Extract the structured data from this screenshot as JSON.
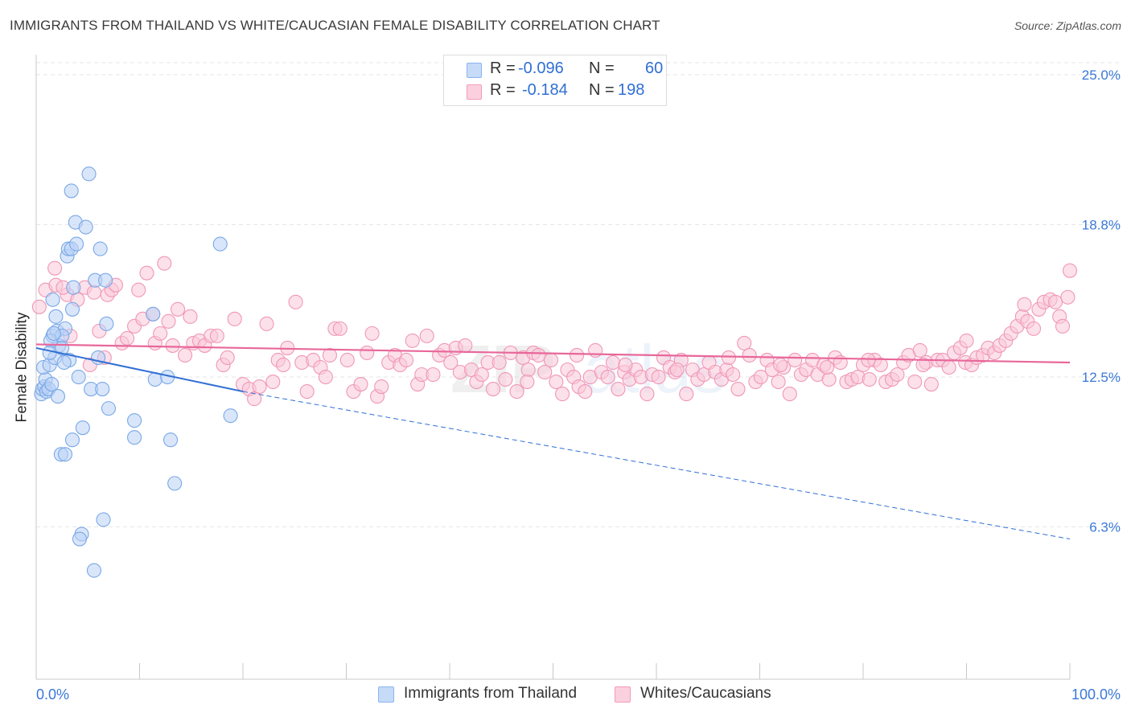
{
  "header": {
    "title": "IMMIGRANTS FROM THAILAND VS WHITE/CAUCASIAN FEMALE DISABILITY CORRELATION CHART",
    "source": "Source: ZipAtlas.com"
  },
  "legend": {
    "rows": [
      {
        "r_label": "R =",
        "r_value": "-0.096",
        "n_label": "N =",
        "n_value": "60",
        "color": "#8ab4f0",
        "fill": "#c6dbf7"
      },
      {
        "r_label": "R =",
        "r_value": "-0.184",
        "n_label": "N =",
        "n_value": "198",
        "color": "#f39ab8",
        "fill": "#fbd0de"
      }
    ]
  },
  "bottom_legend": [
    {
      "label": "Immigrants from Thailand"
    },
    {
      "label": "Whites/Caucasians"
    }
  ],
  "colors": {
    "blue_stroke": "#7aa8e6",
    "blue_fill": "#b9d2f5",
    "blue_line": "#2f6fd4",
    "pink_stroke": "#f097b6",
    "pink_fill": "#f9c8d8",
    "pink_line": "#e8679a",
    "axis_text": "#3b78d8",
    "grid": "#e6e6e6"
  },
  "chart_data": {
    "type": "scatter",
    "title": "IMMIGRANTS FROM THAILAND VS WHITE/CAUCASIAN FEMALE DISABILITY CORRELATION CHART",
    "xlabel": "",
    "ylabel": "Female Disability",
    "xlim": [
      0,
      100
    ],
    "ylim": [
      0,
      25.5
    ],
    "x_tick_labels": [
      "0.0%",
      "100.0%"
    ],
    "y_ticks": [
      6.3,
      12.5,
      18.8,
      25.0
    ],
    "y_tick_labels": [
      "6.3%",
      "12.5%",
      "18.8%",
      "25.0%"
    ],
    "grid": "horizontal dashed",
    "legend_position": "top-center",
    "watermark": "ZIPatlas",
    "series": [
      {
        "name": "Immigrants from Thailand",
        "R": -0.096,
        "N": 60,
        "trend": {
          "x0": 0,
          "y0": 13.7,
          "x1_solid": 20,
          "y1_solid": 11.9,
          "x1": 100,
          "y1": 5.8
        },
        "points": [
          [
            0.5,
            11.8
          ],
          [
            0.6,
            12.0
          ],
          [
            0.8,
            12.1
          ],
          [
            1.0,
            11.9
          ],
          [
            0.9,
            12.4
          ],
          [
            1.2,
            12.0
          ],
          [
            1.5,
            12.2
          ],
          [
            0.7,
            12.9
          ],
          [
            1.3,
            13.0
          ],
          [
            1.8,
            13.3
          ],
          [
            2.2,
            13.8
          ],
          [
            1.6,
            14.2
          ],
          [
            2.0,
            14.4
          ],
          [
            1.4,
            14.0
          ],
          [
            2.8,
            14.5
          ],
          [
            2.5,
            14.2
          ],
          [
            1.9,
            15.0
          ],
          [
            3.5,
            15.3
          ],
          [
            3.6,
            16.2
          ],
          [
            3.0,
            17.5
          ],
          [
            3.1,
            17.8
          ],
          [
            3.4,
            17.8
          ],
          [
            3.9,
            18.0
          ],
          [
            3.8,
            18.9
          ],
          [
            4.8,
            18.7
          ],
          [
            6.2,
            17.8
          ],
          [
            3.4,
            20.2
          ],
          [
            5.1,
            20.9
          ],
          [
            5.7,
            16.5
          ],
          [
            6.7,
            16.5
          ],
          [
            6.8,
            14.7
          ],
          [
            1.6,
            15.7
          ],
          [
            2.5,
            13.7
          ],
          [
            3.2,
            13.2
          ],
          [
            2.7,
            13.1
          ],
          [
            4.1,
            12.5
          ],
          [
            5.3,
            12.0
          ],
          [
            6.4,
            12.0
          ],
          [
            2.1,
            11.7
          ],
          [
            7.0,
            11.2
          ],
          [
            4.5,
            10.4
          ],
          [
            3.5,
            9.9
          ],
          [
            2.4,
            9.3
          ],
          [
            2.8,
            9.3
          ],
          [
            9.5,
            10.7
          ],
          [
            9.5,
            10.0
          ],
          [
            13.0,
            9.9
          ],
          [
            13.4,
            8.1
          ],
          [
            11.5,
            12.4
          ],
          [
            12.7,
            12.5
          ],
          [
            11.3,
            15.1
          ],
          [
            17.8,
            18.0
          ],
          [
            18.8,
            10.9
          ],
          [
            6.5,
            6.6
          ],
          [
            4.4,
            6.0
          ],
          [
            4.2,
            5.8
          ],
          [
            5.6,
            4.5
          ],
          [
            1.7,
            14.3
          ],
          [
            6.0,
            13.3
          ],
          [
            1.3,
            13.5
          ]
        ]
      },
      {
        "name": "Whites/Caucasians",
        "R": -0.184,
        "N": 198,
        "trend": {
          "x0": 0,
          "y0": 13.85,
          "x1": 100,
          "y1": 13.1
        },
        "points": [
          [
            0.3,
            15.4
          ],
          [
            0.9,
            16.1
          ],
          [
            1.9,
            16.3
          ],
          [
            1.8,
            17.0
          ],
          [
            3.0,
            15.9
          ],
          [
            2.6,
            16.2
          ],
          [
            3.3,
            14.2
          ],
          [
            4.0,
            15.7
          ],
          [
            4.7,
            16.2
          ],
          [
            5.2,
            13.0
          ],
          [
            5.6,
            16.0
          ],
          [
            6.1,
            14.4
          ],
          [
            6.6,
            13.3
          ],
          [
            6.9,
            15.9
          ],
          [
            7.3,
            16.1
          ],
          [
            7.7,
            16.3
          ],
          [
            8.3,
            13.9
          ],
          [
            8.8,
            14.1
          ],
          [
            9.5,
            14.6
          ],
          [
            9.9,
            16.1
          ],
          [
            10.3,
            14.9
          ],
          [
            10.7,
            16.8
          ],
          [
            11.3,
            15.1
          ],
          [
            11.5,
            13.9
          ],
          [
            12.0,
            14.3
          ],
          [
            12.4,
            17.2
          ],
          [
            12.8,
            14.8
          ],
          [
            13.2,
            13.8
          ],
          [
            13.7,
            15.3
          ],
          [
            14.4,
            13.4
          ],
          [
            14.9,
            15.0
          ],
          [
            15.2,
            13.9
          ],
          [
            15.8,
            14.0
          ],
          [
            16.3,
            13.8
          ],
          [
            16.9,
            14.2
          ],
          [
            17.5,
            14.2
          ],
          [
            18.1,
            13.0
          ],
          [
            18.5,
            13.3
          ],
          [
            19.2,
            14.9
          ],
          [
            20.0,
            12.2
          ],
          [
            20.6,
            12.0
          ],
          [
            21.1,
            11.6
          ],
          [
            21.6,
            12.1
          ],
          [
            22.3,
            14.7
          ],
          [
            22.9,
            12.3
          ],
          [
            23.4,
            13.2
          ],
          [
            23.9,
            13.0
          ],
          [
            24.3,
            13.7
          ],
          [
            25.1,
            15.6
          ],
          [
            25.7,
            13.1
          ],
          [
            26.2,
            11.9
          ],
          [
            26.8,
            13.2
          ],
          [
            27.5,
            12.9
          ],
          [
            28.0,
            12.5
          ],
          [
            28.4,
            13.4
          ],
          [
            28.9,
            14.5
          ],
          [
            29.4,
            14.5
          ],
          [
            30.1,
            13.2
          ],
          [
            30.7,
            11.9
          ],
          [
            31.4,
            12.2
          ],
          [
            32.0,
            13.5
          ],
          [
            32.5,
            14.3
          ],
          [
            33.0,
            11.7
          ],
          [
            33.4,
            12.1
          ],
          [
            34.1,
            13.1
          ],
          [
            34.7,
            13.4
          ],
          [
            35.2,
            13.0
          ],
          [
            35.8,
            13.2
          ],
          [
            36.4,
            14.0
          ],
          [
            36.9,
            12.2
          ],
          [
            37.3,
            12.6
          ],
          [
            37.8,
            14.2
          ],
          [
            38.4,
            12.6
          ],
          [
            39.0,
            13.4
          ],
          [
            39.5,
            13.6
          ],
          [
            40.1,
            13.1
          ],
          [
            40.6,
            13.7
          ],
          [
            41.0,
            12.7
          ],
          [
            41.5,
            13.8
          ],
          [
            42.1,
            12.8
          ],
          [
            42.6,
            12.3
          ],
          [
            43.1,
            12.6
          ],
          [
            43.7,
            13.1
          ],
          [
            44.2,
            12.0
          ],
          [
            44.8,
            13.1
          ],
          [
            45.4,
            12.4
          ],
          [
            45.9,
            13.5
          ],
          [
            46.5,
            11.9
          ],
          [
            47.1,
            13.3
          ],
          [
            47.6,
            12.8
          ],
          [
            48.1,
            13.5
          ],
          [
            48.6,
            13.4
          ],
          [
            49.2,
            12.7
          ],
          [
            49.8,
            13.2
          ],
          [
            50.3,
            12.3
          ],
          [
            50.9,
            11.8
          ],
          [
            51.4,
            12.8
          ],
          [
            52.0,
            12.5
          ],
          [
            52.5,
            12.1
          ],
          [
            53.1,
            11.9
          ],
          [
            53.6,
            12.5
          ],
          [
            54.1,
            13.6
          ],
          [
            54.7,
            12.7
          ],
          [
            55.3,
            12.5
          ],
          [
            55.8,
            13.1
          ],
          [
            56.3,
            12.0
          ],
          [
            56.9,
            12.7
          ],
          [
            57.4,
            12.4
          ],
          [
            58.0,
            12.8
          ],
          [
            58.5,
            12.5
          ],
          [
            59.1,
            11.8
          ],
          [
            59.6,
            12.6
          ],
          [
            60.2,
            12.5
          ],
          [
            60.7,
            13.3
          ],
          [
            61.3,
            12.9
          ],
          [
            61.8,
            12.7
          ],
          [
            62.4,
            13.2
          ],
          [
            62.9,
            11.8
          ],
          [
            63.5,
            12.8
          ],
          [
            64.0,
            12.4
          ],
          [
            64.6,
            12.6
          ],
          [
            65.1,
            13.1
          ],
          [
            65.7,
            12.7
          ],
          [
            66.3,
            12.4
          ],
          [
            66.8,
            12.8
          ],
          [
            67.4,
            12.6
          ],
          [
            67.9,
            12.0
          ],
          [
            68.5,
            13.9
          ],
          [
            69.0,
            13.4
          ],
          [
            69.6,
            12.3
          ],
          [
            70.1,
            12.5
          ],
          [
            70.7,
            13.2
          ],
          [
            71.2,
            12.8
          ],
          [
            71.8,
            12.3
          ],
          [
            72.3,
            12.9
          ],
          [
            72.9,
            11.8
          ],
          [
            73.4,
            13.2
          ],
          [
            74.0,
            12.6
          ],
          [
            74.5,
            12.8
          ],
          [
            75.1,
            13.2
          ],
          [
            75.6,
            12.6
          ],
          [
            76.2,
            13.0
          ],
          [
            76.7,
            12.4
          ],
          [
            77.3,
            13.3
          ],
          [
            77.8,
            13.1
          ],
          [
            78.4,
            12.3
          ],
          [
            78.9,
            12.4
          ],
          [
            79.5,
            12.5
          ],
          [
            80.0,
            13.0
          ],
          [
            80.6,
            12.4
          ],
          [
            81.1,
            13.2
          ],
          [
            81.7,
            13.0
          ],
          [
            82.2,
            12.3
          ],
          [
            82.8,
            12.4
          ],
          [
            83.3,
            12.6
          ],
          [
            83.9,
            13.1
          ],
          [
            84.4,
            13.4
          ],
          [
            85.0,
            12.3
          ],
          [
            85.5,
            13.6
          ],
          [
            86.1,
            13.1
          ],
          [
            86.6,
            12.2
          ],
          [
            87.2,
            13.2
          ],
          [
            87.7,
            13.2
          ],
          [
            88.3,
            12.9
          ],
          [
            88.8,
            13.5
          ],
          [
            89.4,
            13.7
          ],
          [
            89.9,
            13.1
          ],
          [
            90.5,
            13.0
          ],
          [
            91.0,
            13.3
          ],
          [
            91.6,
            13.4
          ],
          [
            92.1,
            13.7
          ],
          [
            92.7,
            13.5
          ],
          [
            93.2,
            13.8
          ],
          [
            93.8,
            14.0
          ],
          [
            94.3,
            14.3
          ],
          [
            94.9,
            14.6
          ],
          [
            95.4,
            15.0
          ],
          [
            95.9,
            14.8
          ],
          [
            96.5,
            14.5
          ],
          [
            97.0,
            15.3
          ],
          [
            97.5,
            15.6
          ],
          [
            98.1,
            15.7
          ],
          [
            98.6,
            15.6
          ],
          [
            99.0,
            15.0
          ],
          [
            99.3,
            14.6
          ],
          [
            99.8,
            15.8
          ],
          [
            100.0,
            16.9
          ],
          [
            95.6,
            15.5
          ],
          [
            90.0,
            14.0
          ],
          [
            85.8,
            13.0
          ],
          [
            80.5,
            13.2
          ],
          [
            76.5,
            12.9
          ],
          [
            72.0,
            13.0
          ],
          [
            67.0,
            13.3
          ],
          [
            62.0,
            12.8
          ],
          [
            57.0,
            13.0
          ],
          [
            52.3,
            13.4
          ],
          [
            47.5,
            12.3
          ]
        ]
      }
    ]
  }
}
